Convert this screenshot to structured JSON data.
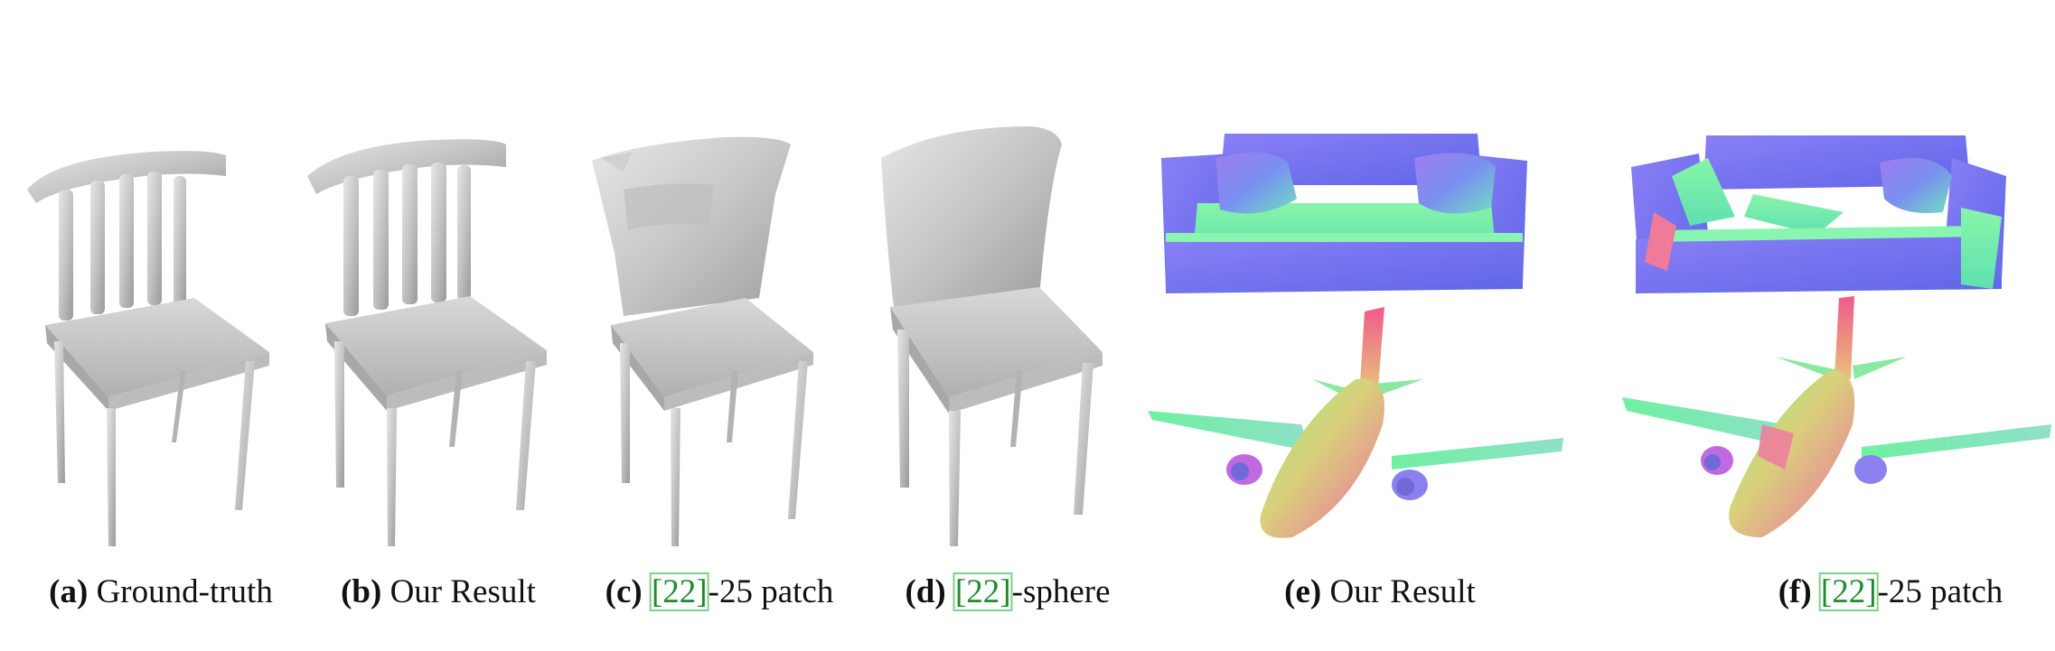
{
  "panels": [
    {
      "label": "(a)",
      "text": "Ground-truth",
      "cite": "",
      "suffix": ""
    },
    {
      "label": "(b)",
      "text": "Our Result",
      "cite": "",
      "suffix": ""
    },
    {
      "label": "(c)",
      "text": "",
      "cite": "[22]",
      "suffix": "-25 patch"
    },
    {
      "label": "(d)",
      "text": "",
      "cite": "[22]",
      "suffix": "-sphere"
    },
    {
      "label": "(e)",
      "text": "Our Result",
      "cite": "",
      "suffix": ""
    },
    {
      "label": "(f)",
      "text": "",
      "cite": "[22]",
      "suffix": "-25 patch"
    }
  ],
  "colors": {
    "shaded_gray": "#c9c9c9",
    "normal_blue": "#7a73f0",
    "normal_green": "#6ff0a0",
    "normal_pink": "#f070b0",
    "citation_green": "#1f8a2a"
  }
}
